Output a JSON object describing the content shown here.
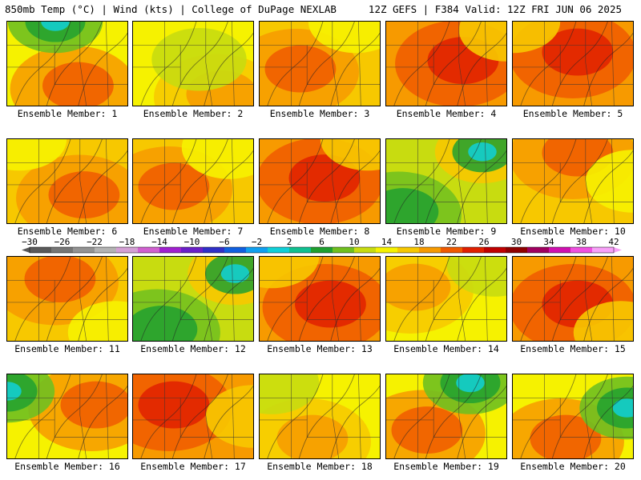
{
  "header": {
    "left": "850mb Temp (°C) | Wind (kts) | College of DuPage NEXLAB",
    "right": "12Z GEFS | F384 Valid: 12Z FRI JUN 06 2025"
  },
  "colorbar": {
    "labels": [
      "-30",
      "-26",
      "-22",
      "-18",
      "-14",
      "-10",
      "-6",
      "-2",
      "2",
      "6",
      "10",
      "14",
      "18",
      "22",
      "26",
      "30",
      "34",
      "38",
      "42"
    ],
    "colors": [
      "#5a5a5a",
      "#767676",
      "#939393",
      "#b3b3b3",
      "#d4a0d4",
      "#d060d0",
      "#a020d0",
      "#6a20c8",
      "#3030c8",
      "#1060e0",
      "#10a0f0",
      "#10d0d8",
      "#10c090",
      "#20a030",
      "#70c020",
      "#c8dc10",
      "#f6f200",
      "#f7c800",
      "#f79a00",
      "#f05a00",
      "#e02000",
      "#c00000",
      "#900000",
      "#a00060",
      "#d010b0",
      "#f050e0",
      "#f8a0f8"
    ]
  },
  "panels": [
    {
      "label": "Ensemble Member: 1",
      "theme": "mixed",
      "hot": [
        0.55,
        0.8
      ],
      "cool": [
        0.4,
        0.0
      ]
    },
    {
      "label": "Ensemble Member: 2",
      "theme": "mild",
      "hot": [
        0.7,
        0.9
      ],
      "cool": [
        0.55,
        0.45
      ]
    },
    {
      "label": "Ensemble Member: 3",
      "theme": "warm",
      "hot": [
        0.3,
        0.6
      ],
      "cool": [
        0.8,
        0.0
      ]
    },
    {
      "label": "Ensemble Member: 4",
      "theme": "hot",
      "hot": [
        0.6,
        0.5
      ],
      "cool": [
        1.0,
        0.1
      ]
    },
    {
      "label": "Ensemble Member: 5",
      "theme": "hot",
      "hot": [
        0.5,
        0.4
      ],
      "cool": [
        0.0,
        0.0
      ]
    },
    {
      "label": "Ensemble Member: 6",
      "theme": "warm",
      "hot": [
        0.6,
        0.7
      ],
      "cool": [
        0.1,
        0.0
      ]
    },
    {
      "label": "Ensemble Member: 7",
      "theme": "warm",
      "hot": [
        0.3,
        0.6
      ],
      "cool": [
        0.8,
        0.1
      ]
    },
    {
      "label": "Ensemble Member: 8",
      "theme": "hot",
      "hot": [
        0.5,
        0.5
      ],
      "cool": [
        0.9,
        0.0
      ]
    },
    {
      "label": "Ensemble Member: 9",
      "theme": "cool",
      "hot": [
        0.1,
        0.9
      ],
      "cool": [
        0.8,
        0.15
      ]
    },
    {
      "label": "Ensemble Member: 10",
      "theme": "warm",
      "hot": [
        0.5,
        0.2
      ],
      "cool": [
        1.0,
        0.5
      ]
    },
    {
      "label": "Ensemble Member: 11",
      "theme": "warm",
      "hot": [
        0.4,
        0.3
      ],
      "cool": [
        0.9,
        0.9
      ]
    },
    {
      "label": "Ensemble Member: 12",
      "theme": "cool",
      "hot": [
        0.2,
        0.9
      ],
      "cool": [
        0.85,
        0.2
      ]
    },
    {
      "label": "Ensemble Member: 13",
      "theme": "hot",
      "hot": [
        0.55,
        0.6
      ],
      "cool": [
        0.1,
        0.0
      ]
    },
    {
      "label": "Ensemble Member: 14",
      "theme": "mild",
      "hot": [
        0.2,
        0.4
      ],
      "cool": [
        0.9,
        0.1
      ]
    },
    {
      "label": "Ensemble Member: 15",
      "theme": "hot",
      "hot": [
        0.5,
        0.6
      ],
      "cool": [
        0.9,
        0.9
      ]
    },
    {
      "label": "Ensemble Member: 16",
      "theme": "mixed",
      "hot": [
        0.7,
        0.4
      ],
      "cool": [
        0.0,
        0.2
      ]
    },
    {
      "label": "Ensemble Member: 17",
      "theme": "hot",
      "hot": [
        0.3,
        0.4
      ],
      "cool": [
        1.0,
        0.5
      ]
    },
    {
      "label": "Ensemble Member: 18",
      "theme": "mild",
      "hot": [
        0.4,
        0.8
      ],
      "cool": [
        0.1,
        0.1
      ]
    },
    {
      "label": "Ensemble Member: 19",
      "theme": "mixed",
      "hot": [
        0.3,
        0.7
      ],
      "cool": [
        0.7,
        0.1
      ]
    },
    {
      "label": "Ensemble Member: 20",
      "theme": "mixed",
      "hot": [
        0.4,
        0.8
      ],
      "cool": [
        0.95,
        0.4
      ]
    }
  ]
}
